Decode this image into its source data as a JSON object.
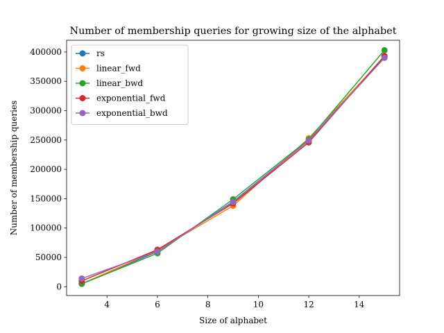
{
  "chart_data": {
    "type": "line",
    "title": "Number of membership queries for growing size of the alphabet",
    "xlabel": "Size of alphabet",
    "ylabel": "Number of membership queries",
    "xlim": [
      2.4,
      15.6
    ],
    "ylim": [
      -15000,
      420000
    ],
    "xticks": [
      4,
      6,
      8,
      10,
      12,
      14
    ],
    "yticks": [
      0,
      50000,
      100000,
      150000,
      200000,
      250000,
      300000,
      350000,
      400000
    ],
    "grid": false,
    "legend_position": "upper-left",
    "x": [
      3,
      6,
      9,
      12,
      15
    ],
    "series": [
      {
        "name": "rs",
        "color": "#1f77b4",
        "values": [
          5000,
          60000,
          145000,
          249000,
          393000
        ]
      },
      {
        "name": "linear_fwd",
        "color": "#ff7f0e",
        "values": [
          5000,
          62000,
          138000,
          253000,
          392000
        ]
      },
      {
        "name": "linear_bwd",
        "color": "#2ca02c",
        "values": [
          5000,
          57000,
          149000,
          251000,
          403000
        ]
      },
      {
        "name": "exponential_fwd",
        "color": "#d62728",
        "values": [
          10000,
          63000,
          142000,
          246000,
          393000
        ]
      },
      {
        "name": "exponential_bwd",
        "color": "#9467bd",
        "values": [
          14000,
          60000,
          144000,
          249000,
          390000
        ]
      }
    ]
  }
}
